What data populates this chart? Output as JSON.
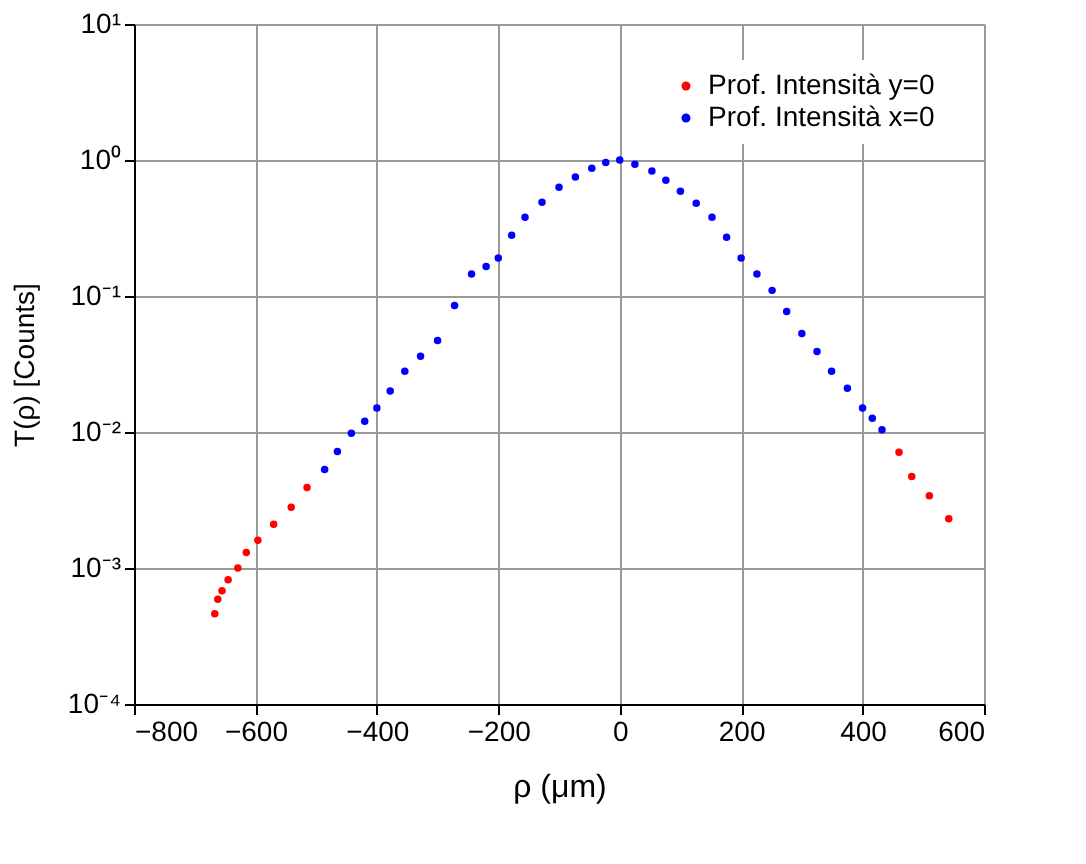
{
  "chart_data": {
    "type": "scatter",
    "xlabel": "ρ  (μm)",
    "ylabel": "T(ρ)    [Counts]",
    "log": "y",
    "grid": true,
    "legend": "top right",
    "marker": "circle",
    "xlim": [
      -800,
      600
    ],
    "xticks": [
      -800,
      -600,
      -400,
      -200,
      0,
      200,
      400,
      600
    ],
    "ylim": [
      0.0001,
      10
    ],
    "yticks": [
      {
        "value": 0.0001,
        "label": "10⁻⁴"
      },
      {
        "value": 0.001,
        "label": "10⁻³"
      },
      {
        "value": 0.01,
        "label": "10⁻²"
      },
      {
        "value": 0.1,
        "label": "10⁻¹"
      },
      {
        "value": 1,
        "label": "10⁰"
      },
      {
        "value": 10,
        "label": "10¹"
      }
    ],
    "series": [
      {
        "name": "Prof. Intensità y=0",
        "color": "#ff0000",
        "x": [
          -667,
          -662,
          -655,
          -645,
          -629,
          -615,
          -596,
          -570,
          -541,
          -515,
          -486,
          -442,
          -400,
          -354,
          -300,
          -244,
          -200,
          -156,
          -100,
          -46,
          0,
          53,
          100,
          152,
          200,
          251,
          300,
          349,
          400,
          432,
          460,
          481,
          510,
          542
        ],
        "values": [
          0.00046,
          0.00059,
          0.00068,
          0.00082,
          0.001,
          0.0013,
          0.0016,
          0.0021,
          0.0028,
          0.0039,
          null,
          null,
          null,
          null,
          null,
          null,
          null,
          null,
          null,
          null,
          null,
          null,
          null,
          null,
          null,
          null,
          null,
          null,
          null,
          null,
          0.0071,
          0.0047,
          0.0034,
          0.0023
        ]
      },
      {
        "name": "Prof. Intensità x=0",
        "color": "#0000ff",
        "x": [
          -486,
          -465,
          -442,
          -420,
          -400,
          -378,
          -354,
          -328,
          -300,
          -272,
          -244,
          -220,
          -200,
          -178,
          -156,
          -128,
          -100,
          -73,
          -46,
          -23,
          0,
          25,
          53,
          76,
          100,
          126,
          152,
          176,
          200,
          226,
          251,
          275,
          300,
          325,
          349,
          375,
          400,
          416,
          432
        ],
        "values": [
          0.0053,
          0.0072,
          0.0098,
          0.012,
          0.015,
          0.02,
          0.028,
          0.036,
          0.047,
          0.085,
          0.145,
          0.165,
          0.19,
          0.28,
          0.38,
          0.49,
          0.63,
          0.75,
          0.87,
          0.96,
          1.0,
          0.93,
          0.83,
          0.71,
          0.59,
          0.48,
          0.38,
          0.27,
          0.19,
          0.145,
          0.11,
          0.077,
          0.053,
          0.039,
          0.028,
          0.021,
          0.015,
          0.0126,
          0.0104
        ]
      }
    ]
  }
}
